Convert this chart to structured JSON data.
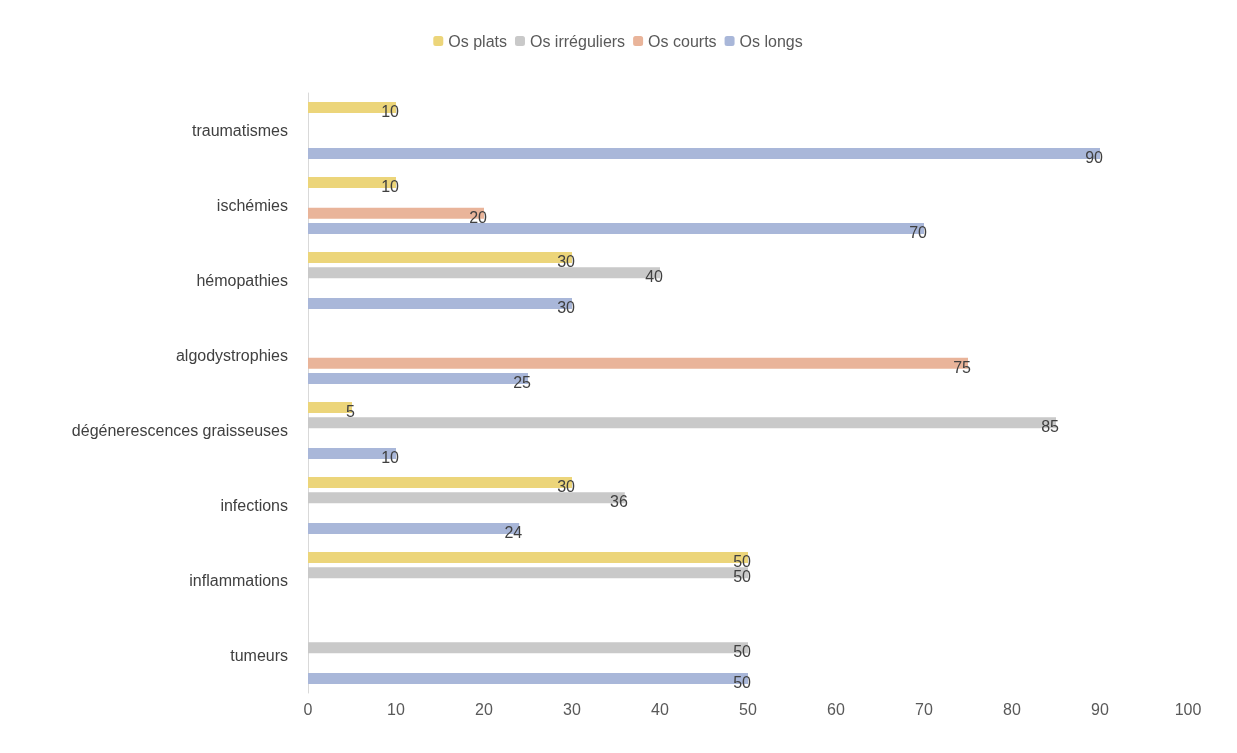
{
  "chart_data": {
    "type": "bar",
    "orientation": "horizontal",
    "categories": [
      "traumatismes",
      "ischémies",
      "hémopathies",
      "algodystrophies",
      "dégénerescences graisseuses",
      "infections",
      "inflammations",
      "tumeurs"
    ],
    "series": [
      {
        "name": "Os plats",
        "color": "#ecd57a",
        "values": [
          10,
          10,
          30,
          null,
          5,
          30,
          50,
          null
        ]
      },
      {
        "name": "Os irréguliers",
        "color": "#c9c9c9",
        "values": [
          null,
          null,
          40,
          null,
          85,
          36,
          50,
          50
        ]
      },
      {
        "name": "Os courts",
        "color": "#e9b49a",
        "values": [
          null,
          20,
          null,
          75,
          null,
          null,
          null,
          null
        ]
      },
      {
        "name": "Os longs",
        "color": "#a9b7d9",
        "values": [
          90,
          70,
          30,
          25,
          10,
          24,
          null,
          50
        ]
      }
    ],
    "xlim": [
      0,
      100
    ],
    "xticks": [
      0,
      10,
      20,
      30,
      40,
      50,
      60,
      70,
      80,
      90,
      100
    ],
    "grid": false,
    "legend": "top",
    "data_labels": true
  }
}
